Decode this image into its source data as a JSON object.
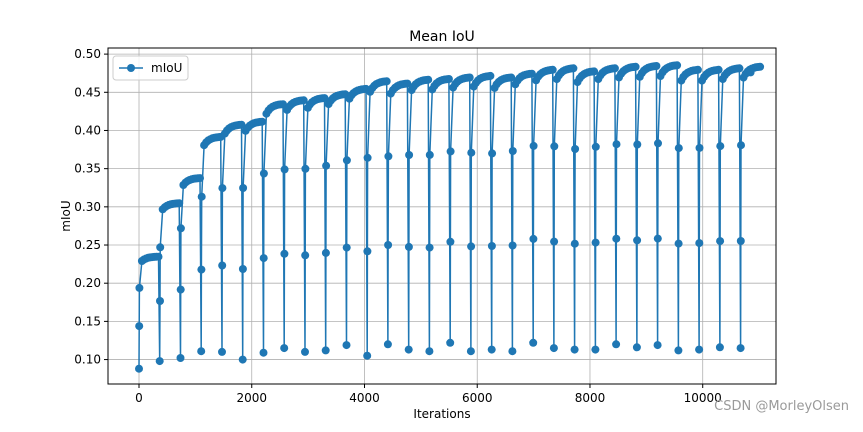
{
  "chart_data": {
    "type": "line",
    "title": "Mean IoU",
    "xlabel": "Iterations",
    "ylabel": "mIoU",
    "xlim": [
      -550,
      11300
    ],
    "ylim": [
      0.068,
      0.508
    ],
    "xticks": [
      0,
      2000,
      4000,
      6000,
      8000,
      10000
    ],
    "yticks": [
      0.1,
      0.15,
      0.2,
      0.25,
      0.3,
      0.35,
      0.4,
      0.45,
      0.5
    ],
    "grid": true,
    "legend_position": "top-left",
    "series": [
      {
        "name": "mIoU",
        "color": "#1f77b4",
        "marker": "circle",
        "cycle_length": 368,
        "cycles": [
          {
            "start": 0,
            "min": 0.088,
            "max": 0.235
          },
          {
            "start": 368,
            "min": 0.098,
            "max": 0.305
          },
          {
            "start": 736,
            "min": 0.102,
            "max": 0.338
          },
          {
            "start": 1104,
            "min": 0.111,
            "max": 0.392
          },
          {
            "start": 1472,
            "min": 0.11,
            "max": 0.408
          },
          {
            "start": 1840,
            "min": 0.1,
            "max": 0.412
          },
          {
            "start": 2208,
            "min": 0.109,
            "max": 0.435
          },
          {
            "start": 2576,
            "min": 0.115,
            "max": 0.44
          },
          {
            "start": 2944,
            "min": 0.11,
            "max": 0.443
          },
          {
            "start": 3312,
            "min": 0.112,
            "max": 0.448
          },
          {
            "start": 3680,
            "min": 0.119,
            "max": 0.455
          },
          {
            "start": 4048,
            "min": 0.105,
            "max": 0.465
          },
          {
            "start": 4416,
            "min": 0.12,
            "max": 0.462
          },
          {
            "start": 4784,
            "min": 0.113,
            "max": 0.467
          },
          {
            "start": 5152,
            "min": 0.111,
            "max": 0.468
          },
          {
            "start": 5520,
            "min": 0.122,
            "max": 0.47
          },
          {
            "start": 5888,
            "min": 0.111,
            "max": 0.472
          },
          {
            "start": 6256,
            "min": 0.113,
            "max": 0.47
          },
          {
            "start": 6624,
            "min": 0.111,
            "max": 0.475
          },
          {
            "start": 6992,
            "min": 0.122,
            "max": 0.48
          },
          {
            "start": 7360,
            "min": 0.115,
            "max": 0.482
          },
          {
            "start": 7728,
            "min": 0.113,
            "max": 0.478
          },
          {
            "start": 8096,
            "min": 0.113,
            "max": 0.482
          },
          {
            "start": 8464,
            "min": 0.12,
            "max": 0.484
          },
          {
            "start": 8832,
            "min": 0.116,
            "max": 0.485
          },
          {
            "start": 9200,
            "min": 0.119,
            "max": 0.486
          },
          {
            "start": 9568,
            "min": 0.112,
            "max": 0.48
          },
          {
            "start": 9936,
            "min": 0.113,
            "max": 0.48
          },
          {
            "start": 10304,
            "min": 0.116,
            "max": 0.482
          },
          {
            "start": 10672,
            "min": 0.115,
            "max": 0.484
          }
        ],
        "end": {
          "x": 10850,
          "y": 0.476
        }
      }
    ]
  },
  "watermark": "CSDN @MorleyOlsen"
}
